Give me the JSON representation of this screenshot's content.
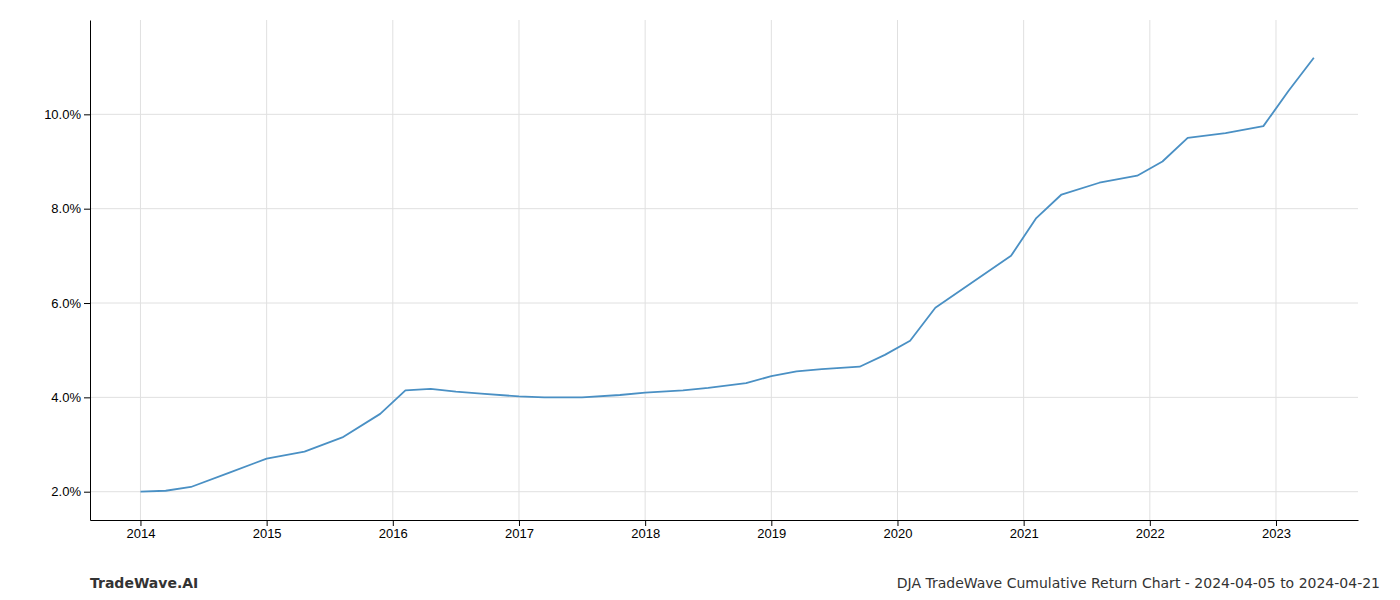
{
  "chart_data": {
    "type": "line",
    "x": [
      2014.0,
      2014.2,
      2014.4,
      2014.7,
      2015.0,
      2015.3,
      2015.6,
      2015.9,
      2016.1,
      2016.3,
      2016.5,
      2016.7,
      2017.0,
      2017.2,
      2017.5,
      2017.8,
      2018.0,
      2018.3,
      2018.5,
      2018.8,
      2019.0,
      2019.2,
      2019.4,
      2019.7,
      2019.9,
      2020.1,
      2020.3,
      2020.6,
      2020.9,
      2021.1,
      2021.3,
      2021.6,
      2021.9,
      2022.1,
      2022.3,
      2022.6,
      2022.9,
      2023.1,
      2023.3
    ],
    "values": [
      2.0,
      2.02,
      2.1,
      2.4,
      2.7,
      2.85,
      3.15,
      3.65,
      4.15,
      4.18,
      4.12,
      4.08,
      4.02,
      4.0,
      4.0,
      4.05,
      4.1,
      4.15,
      4.2,
      4.3,
      4.45,
      4.55,
      4.6,
      4.65,
      4.9,
      5.2,
      5.9,
      6.45,
      7.0,
      7.8,
      8.3,
      8.55,
      8.7,
      9.0,
      9.5,
      9.6,
      9.75,
      10.5,
      11.2
    ],
    "color": "#4a90c4",
    "xlim": [
      2013.6,
      2023.65
    ],
    "ylim": [
      1.4,
      12.0
    ],
    "xticks": [
      2014,
      2015,
      2016,
      2017,
      2018,
      2019,
      2020,
      2021,
      2022,
      2023
    ],
    "yticks": [
      {
        "value": 2.0,
        "label": "2.0%"
      },
      {
        "value": 4.0,
        "label": "4.0%"
      },
      {
        "value": 6.0,
        "label": "6.0%"
      },
      {
        "value": 8.0,
        "label": "8.0%"
      },
      {
        "value": 10.0,
        "label": "10.0%"
      }
    ],
    "grid": true,
    "annotations": [
      "TradeWave.AI",
      "DJA TradeWave Cumulative Return Chart - 2024-04-05 to 2024-04-21"
    ]
  }
}
